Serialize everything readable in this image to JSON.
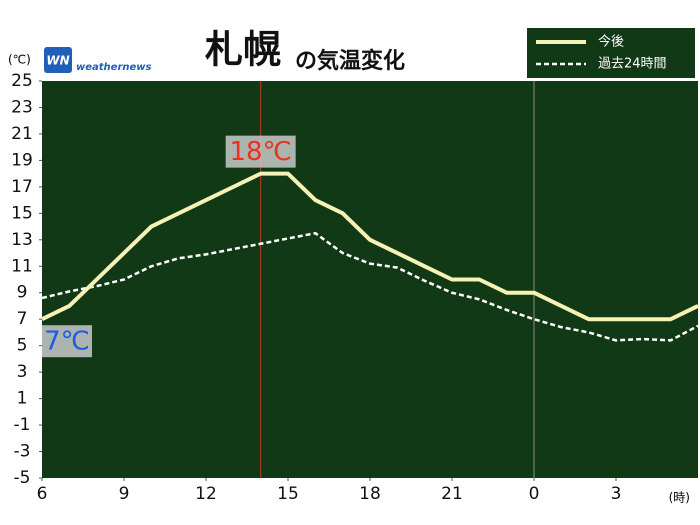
{
  "chart_data": {
    "type": "line",
    "title": "札幌",
    "subtitle": "の気温変化",
    "y_unit": "(℃)",
    "x_unit": "(時)",
    "logo": {
      "mark": "WN",
      "name": "weathernews"
    },
    "xlim": [
      6,
      30
    ],
    "ylim": [
      -5,
      25
    ],
    "xticks": [
      6,
      9,
      12,
      15,
      18,
      21,
      {
        "value": 24,
        "label": "0"
      },
      {
        "value": 27,
        "label": "3"
      }
    ],
    "yticks": [
      -5,
      -3,
      -1,
      1,
      3,
      5,
      7,
      9,
      11,
      13,
      15,
      17,
      19,
      21,
      23,
      25
    ],
    "x": [
      6,
      7,
      8,
      9,
      10,
      11,
      12,
      13,
      14,
      15,
      16,
      17,
      18,
      19,
      20,
      21,
      22,
      23,
      24,
      25,
      26,
      27,
      28,
      29,
      30
    ],
    "markers": [
      {
        "x": 14,
        "color": "#c0392b"
      },
      {
        "x": 24,
        "color": "#8a8a8a"
      }
    ],
    "legend": "top-right",
    "background": "#123916",
    "series": [
      {
        "name": "今後",
        "color": "#f6f1b4",
        "dash": false,
        "values": [
          7,
          8,
          10,
          12,
          14,
          15,
          16,
          17,
          18,
          18,
          16,
          15,
          13,
          12,
          11,
          10,
          10,
          9,
          9,
          8,
          7,
          7,
          7,
          7,
          8
        ],
        "value_labels": [
          "7℃",
          null,
          null,
          null,
          null,
          null,
          null,
          null,
          "18℃",
          null,
          null,
          null,
          null,
          null,
          null,
          null,
          null,
          null,
          null,
          null,
          null,
          null,
          null,
          null,
          null
        ]
      },
      {
        "name": "過去24時間",
        "color": "#ffffff",
        "dash": true,
        "values": [
          8.6,
          9.1,
          9.5,
          10,
          11,
          11.6,
          11.9,
          12.3,
          12.7,
          13.1,
          13.5,
          12,
          11.2,
          10.9,
          9.9,
          9,
          8.5,
          7.7,
          7,
          6.4,
          6,
          5.4,
          5.5,
          5.4,
          6.5
        ]
      }
    ]
  }
}
